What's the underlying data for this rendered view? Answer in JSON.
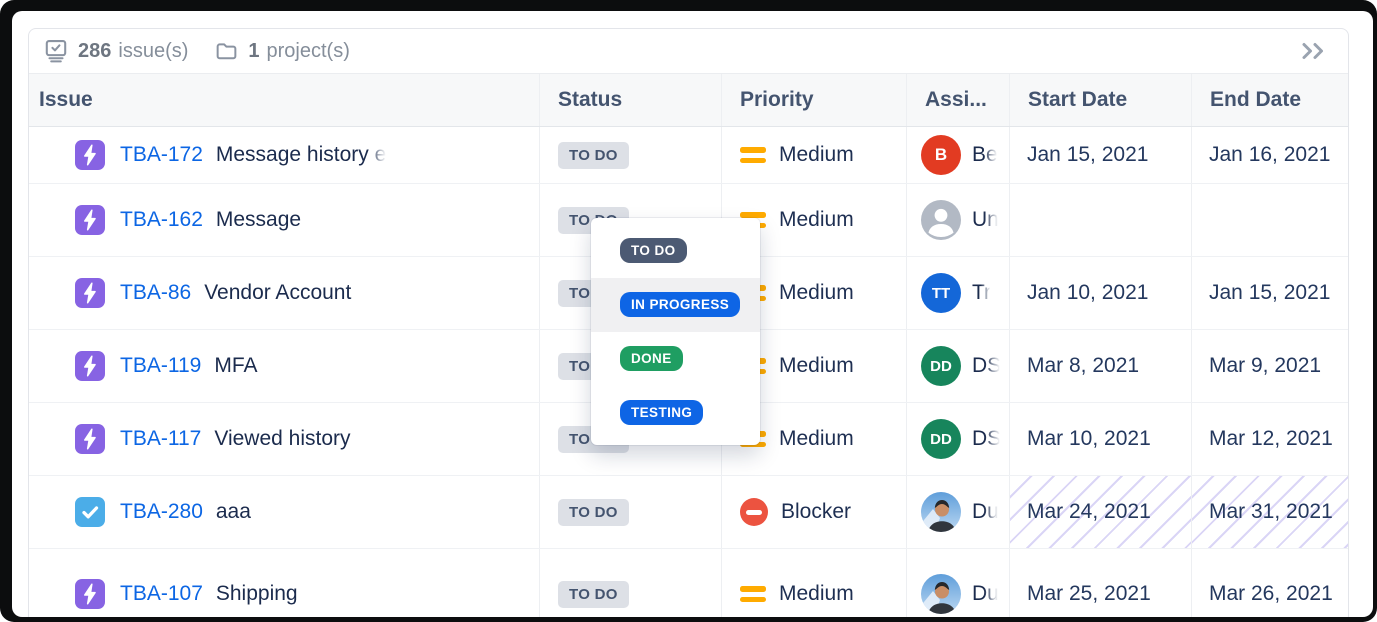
{
  "toolbar": {
    "issues_count": "286",
    "issues_label": "issue(s)",
    "projects_count": "1",
    "projects_label": "project(s)"
  },
  "table": {
    "columns": [
      "Issue",
      "Status",
      "Priority",
      "Assi...",
      "Start Date",
      "End Date"
    ],
    "rows": [
      {
        "key": "TBA-172",
        "summary": "Message history e",
        "summary_faded": true,
        "type": "story",
        "status": "TO DO",
        "priority": {
          "label": "Medium",
          "kind": "medium"
        },
        "assignee": {
          "kind": "initials",
          "initials": "B",
          "color": "#e23b22",
          "visible_name": "Be"
        },
        "start_date": "Jan 15, 2021",
        "end_date": "Jan 16, 2021",
        "dates_hatched": false
      },
      {
        "key": "TBA-162",
        "summary": "Message",
        "summary_faded": false,
        "type": "story",
        "status": "TO DO",
        "priority": {
          "label": "Medium",
          "kind": "medium"
        },
        "assignee": {
          "kind": "unassigned",
          "visible_name": "Un"
        },
        "start_date": "",
        "end_date": "",
        "dates_hatched": false
      },
      {
        "key": "TBA-86",
        "summary": "Vendor Account",
        "summary_faded": false,
        "type": "story",
        "status": "TO DO",
        "priority": {
          "label": "Medium",
          "kind": "medium"
        },
        "assignee": {
          "kind": "initials",
          "initials": "TT",
          "color": "#1467d8",
          "visible_name": "Tr"
        },
        "start_date": "Jan 10, 2021",
        "end_date": "Jan 15, 2021",
        "dates_hatched": false
      },
      {
        "key": "TBA-119",
        "summary": "MFA",
        "summary_faded": false,
        "type": "story",
        "status": "TO DO",
        "priority": {
          "label": "Medium",
          "kind": "medium"
        },
        "assignee": {
          "kind": "initials",
          "initials": "DD",
          "color": "#17855c",
          "visible_name": "DS"
        },
        "start_date": "Mar 8, 2021",
        "end_date": "Mar 9, 2021",
        "dates_hatched": false
      },
      {
        "key": "TBA-117",
        "summary": "Viewed history",
        "summary_faded": false,
        "type": "story",
        "status": "TO DO",
        "priority": {
          "label": "Medium",
          "kind": "medium"
        },
        "assignee": {
          "kind": "initials",
          "initials": "DD",
          "color": "#17855c",
          "visible_name": "DS"
        },
        "start_date": "Mar 10, 2021",
        "end_date": "Mar 12, 2021",
        "dates_hatched": false
      },
      {
        "key": "TBA-280",
        "summary": "aaa",
        "summary_faded": false,
        "type": "task",
        "status": "TO DO",
        "priority": {
          "label": "Blocker",
          "kind": "blocker"
        },
        "assignee": {
          "kind": "photo",
          "visible_name": "Du"
        },
        "start_date": "Mar 24, 2021",
        "end_date": "Mar 31, 2021",
        "dates_hatched": true
      },
      {
        "key": "TBA-107",
        "summary": "Shipping",
        "summary_faded": false,
        "type": "story",
        "status": "TO DO",
        "priority": {
          "label": "Medium",
          "kind": "medium"
        },
        "assignee": {
          "kind": "photo",
          "visible_name": "Du"
        },
        "start_date": "Mar 25, 2021",
        "end_date": "Mar 26, 2021",
        "dates_hatched": false
      }
    ]
  },
  "status_dropdown": {
    "options": [
      {
        "label": "TO DO",
        "color": "#4c5a73",
        "highlighted": false
      },
      {
        "label": "IN PROGRESS",
        "color": "#0e65e5",
        "highlighted": true
      },
      {
        "label": "DONE",
        "color": "#1f9e62",
        "highlighted": false
      },
      {
        "label": "TESTING",
        "color": "#0e65e5",
        "highlighted": false
      }
    ]
  },
  "colors": {
    "story_purple": "#8763e3",
    "task_blue": "#4badе8",
    "task_blue_hex": "#4bade8",
    "unassigned_gray": "#b2b9c4",
    "priority_orange": "#ffab00",
    "blocker_red": "#ec5340",
    "key_blue": "#0c66e4"
  }
}
